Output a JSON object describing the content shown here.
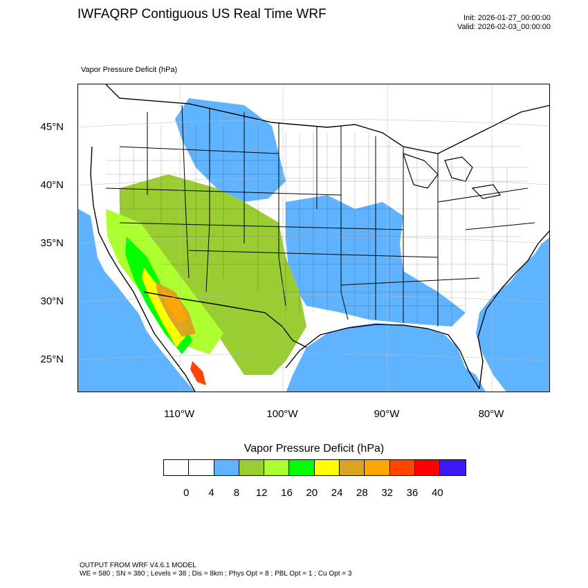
{
  "header": {
    "title": "IWFAQRP Contiguous US Real Time WRF",
    "init": "Init: 2026-01-27_00:00:00",
    "valid": "Valid: 2026-02-03_00:00:00"
  },
  "map": {
    "subtitle": "Vapor Pressure Deficit   (hPa)",
    "lat_labels": [
      "45°N",
      "40°N",
      "35°N",
      "30°N",
      "25°N"
    ],
    "lon_labels": [
      "110°W",
      "100°W",
      "90°W",
      "80°W"
    ],
    "ocean_color": "#60b4ff",
    "land_color": "#ffffff"
  },
  "colorbar": {
    "title": "Vapor Pressure Deficit  (hPa)",
    "colors": [
      "#ffffff",
      "#ffffff",
      "#60b4ff",
      "#9acd32",
      "#adff2f",
      "#00ff00",
      "#ffff00",
      "#daa520",
      "#ffa500",
      "#ff4500",
      "#ff0000",
      "#3b1bf5"
    ],
    "ticks": [
      "0",
      "4",
      "8",
      "12",
      "16",
      "20",
      "24",
      "28",
      "32",
      "36",
      "40"
    ]
  },
  "footer": {
    "line1": "OUTPUT FROM WRF V4.6.1 MODEL",
    "line2": "WE = 580 ; SN = 380 ; Levels = 38 ; Dis = 8km ; Phys Opt = 8 ; PBL Opt = 1 ; Cu Opt = 3"
  }
}
